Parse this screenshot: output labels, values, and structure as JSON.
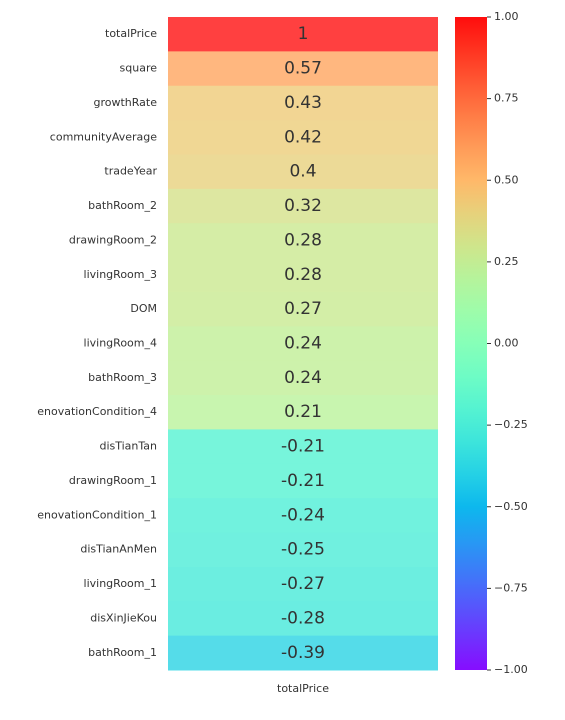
{
  "chart_data": {
    "type": "heatmap",
    "rows": [
      "totalPrice",
      "square",
      "growthRate",
      "communityAverage",
      "tradeYear",
      "bathRoom_2",
      "drawingRoom_2",
      "livingRoom_3",
      "DOM",
      "livingRoom_4",
      "bathRoom_3",
      "enovationCondition_4",
      "disTianTan",
      "drawingRoom_1",
      "enovationCondition_1",
      "disTianAnMen",
      "livingRoom_1",
      "disXinJieKou",
      "bathRoom_1"
    ],
    "columns": [
      "totalPrice"
    ],
    "values": [
      [
        1
      ],
      [
        0.57
      ],
      [
        0.43
      ],
      [
        0.42
      ],
      [
        0.4
      ],
      [
        0.32
      ],
      [
        0.28
      ],
      [
        0.28
      ],
      [
        0.27
      ],
      [
        0.24
      ],
      [
        0.24
      ],
      [
        0.21
      ],
      [
        -0.21
      ],
      [
        -0.21
      ],
      [
        -0.24
      ],
      [
        -0.25
      ],
      [
        -0.27
      ],
      [
        -0.28
      ],
      [
        -0.39
      ]
    ],
    "colormap": "rainbow",
    "clim": [
      -1,
      1
    ],
    "cticks": [
      {
        "value": -1,
        "label": "−1.00"
      },
      {
        "value": -0.75,
        "label": "−0.75"
      },
      {
        "value": -0.5,
        "label": "−0.50"
      },
      {
        "value": -0.25,
        "label": "−0.25"
      },
      {
        "value": 0,
        "label": "0.00"
      },
      {
        "value": 0.25,
        "label": "0.25"
      },
      {
        "value": 0.5,
        "label": "0.50"
      },
      {
        "value": 0.75,
        "label": "0.75"
      },
      {
        "value": 1,
        "label": "1.00"
      }
    ]
  }
}
